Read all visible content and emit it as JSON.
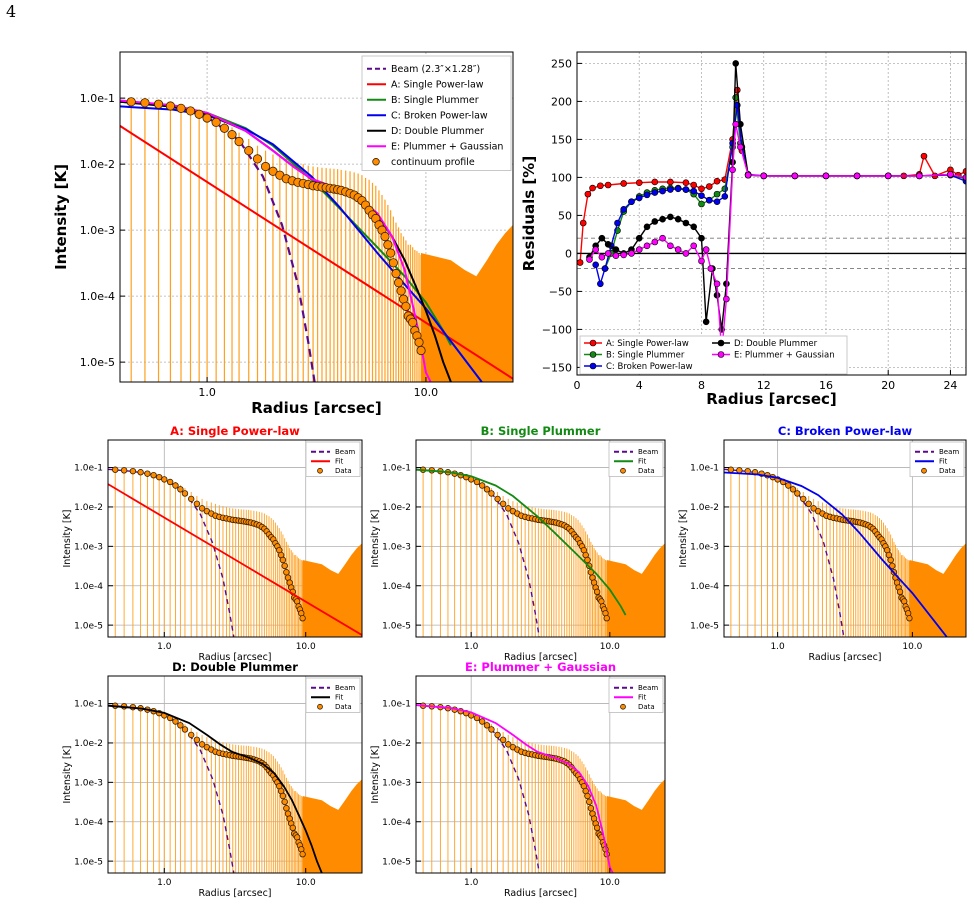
{
  "page_number": "4",
  "colors": {
    "beam": "#5c0a8a",
    "model_a": "#ff0000",
    "model_b": "#138a13",
    "model_c": "#0000ee",
    "model_d": "#000000",
    "model_e": "#ff00ff",
    "data_face": "#ff8c00",
    "errorbar": "#ffa020",
    "grid": "#b0b0b0"
  },
  "chart_data": [
    {
      "id": "profile-main",
      "type": "line",
      "xscale": "log",
      "yscale": "log",
      "xlabel": "Radius [arcsec]",
      "ylabel": "Intensity [K]",
      "xlim": [
        0.4,
        25
      ],
      "ylim": [
        5e-06,
        0.5
      ],
      "xticks": [
        {
          "v": 1,
          "label": "1.0"
        },
        {
          "v": 10,
          "label": "10.0"
        }
      ],
      "yticks": [
        {
          "v": 0.1,
          "label": "1.0e-1"
        },
        {
          "v": 0.01,
          "label": "1.0e-2"
        },
        {
          "v": 0.001,
          "label": "1.0e-3"
        },
        {
          "v": 0.0001,
          "label": "1.0e-4"
        },
        {
          "v": 1e-05,
          "label": "1.0e-5"
        }
      ],
      "grid": true,
      "legend_position": "top-right",
      "legend": [
        {
          "key": "beam",
          "label": "Beam (2.3″×1.28″)"
        },
        {
          "key": "model_a",
          "label": "A: Single Power-law"
        },
        {
          "key": "model_b",
          "label": "B: Single Plummer"
        },
        {
          "key": "model_c",
          "label": "C: Broken Power-law"
        },
        {
          "key": "model_d",
          "label": "D: Double Plummer"
        },
        {
          "key": "model_e",
          "label": "E: Plummer + Gaussian"
        },
        {
          "key": "data",
          "label": "continuum profile"
        }
      ],
      "series": [
        {
          "key": "beam",
          "style": "dashed",
          "x": [
            0.4,
            0.6,
            0.8,
            1.0,
            1.4,
            1.8,
            2.2,
            2.6,
            2.9,
            3.1
          ],
          "y": [
            0.09,
            0.08,
            0.067,
            0.052,
            0.023,
            0.0065,
            0.0012,
            0.00015,
            2e-05,
            5e-06
          ]
        },
        {
          "key": "model_a",
          "x": [
            0.4,
            25
          ],
          "y": [
            0.038,
            5.6e-06
          ]
        },
        {
          "key": "model_b",
          "x": [
            0.4,
            0.7,
            1.0,
            1.5,
            2.0,
            3.0,
            4.0,
            6.0,
            8.0,
            10.0,
            12.0,
            13.0
          ],
          "y": [
            0.088,
            0.076,
            0.06,
            0.035,
            0.019,
            0.0058,
            0.0022,
            0.00055,
            0.0002,
            8e-05,
            3e-05,
            1.8e-05
          ]
        },
        {
          "key": "model_c",
          "x": [
            0.4,
            0.7,
            1.0,
            1.5,
            2.0,
            3.0,
            4.0,
            6.0,
            8.0,
            10.0,
            14.0,
            18.0
          ],
          "y": [
            0.075,
            0.067,
            0.055,
            0.034,
            0.02,
            0.0065,
            0.0023,
            0.00045,
            0.00015,
            6.5e-05,
            1.5e-05,
            5e-06
          ]
        },
        {
          "key": "model_d",
          "x": [
            0.4,
            0.7,
            1.0,
            1.5,
            2.0,
            2.5,
            3.0,
            4.0,
            5.0,
            6.0,
            7.0,
            8.0,
            9.0,
            10.0,
            11.0,
            12.0,
            13.0
          ],
          "y": [
            0.088,
            0.074,
            0.058,
            0.032,
            0.016,
            0.009,
            0.006,
            0.0042,
            0.0029,
            0.0017,
            0.0008,
            0.00035,
            0.00014,
            6e-05,
            2.5e-05,
            1e-05,
            5e-06
          ]
        },
        {
          "key": "model_e",
          "x": [
            0.4,
            0.7,
            1.0,
            1.5,
            2.0,
            2.5,
            3.0,
            4.0,
            5.0,
            6.0,
            7.0,
            8.0,
            9.0,
            9.5,
            10.0,
            10.5
          ],
          "y": [
            0.092,
            0.078,
            0.06,
            0.032,
            0.016,
            0.009,
            0.006,
            0.0042,
            0.003,
            0.0018,
            0.0008,
            0.00025,
            4.5e-05,
            1.8e-05,
            7e-06,
            5e-06
          ]
        }
      ],
      "data_points": {
        "x": [
          0.45,
          0.52,
          0.6,
          0.68,
          0.76,
          0.84,
          0.92,
          1.0,
          1.1,
          1.2,
          1.3,
          1.4,
          1.55,
          1.7,
          1.85,
          2.0,
          2.15,
          2.3,
          2.45,
          2.6,
          2.75,
          2.9,
          3.05,
          3.2,
          3.35,
          3.5,
          3.65,
          3.8,
          3.95,
          4.1,
          4.3,
          4.5,
          4.7,
          4.9,
          5.1,
          5.3,
          5.5,
          5.7,
          5.9,
          6.1,
          6.3,
          6.5,
          6.7,
          6.9,
          7.1,
          7.3,
          7.5,
          7.7,
          7.9,
          8.1,
          8.3,
          8.5,
          8.7,
          8.9,
          9.1,
          9.3,
          9.5
        ],
        "y": [
          0.088,
          0.085,
          0.081,
          0.076,
          0.07,
          0.064,
          0.057,
          0.05,
          0.043,
          0.035,
          0.028,
          0.022,
          0.016,
          0.012,
          0.0092,
          0.0078,
          0.0068,
          0.006,
          0.0056,
          0.0053,
          0.0051,
          0.0049,
          0.0047,
          0.0046,
          0.0045,
          0.0044,
          0.0043,
          0.0042,
          0.0041,
          0.004,
          0.0038,
          0.0036,
          0.0034,
          0.0031,
          0.0028,
          0.0024,
          0.002,
          0.0017,
          0.0015,
          0.0012,
          0.001,
          0.0008,
          0.0006,
          0.00045,
          0.00032,
          0.00022,
          0.00016,
          0.00012,
          9e-05,
          7e-05,
          5e-05,
          4.5e-05,
          4e-05,
          3e-05,
          2.5e-05,
          2e-05,
          1.5e-05
        ],
        "err_y": [
          0.098,
          0.094,
          0.09,
          0.085,
          0.079,
          0.073,
          0.066,
          0.058,
          0.051,
          0.043,
          0.036,
          0.03,
          0.024,
          0.019,
          0.016,
          0.014,
          0.013,
          0.012,
          0.011,
          0.0105,
          0.01,
          0.0095,
          0.0092,
          0.009,
          0.0088,
          0.0087,
          0.0086,
          0.0085,
          0.0084,
          0.0082,
          0.008,
          0.0078,
          0.0075,
          0.0072,
          0.0068,
          0.0062,
          0.0058,
          0.0052,
          0.0047,
          0.004,
          0.0034,
          0.0029,
          0.0024,
          0.002,
          0.0016,
          0.0013,
          0.0011,
          0.0009,
          0.0008,
          0.0007,
          0.0006,
          0.0006,
          0.00055,
          0.0005,
          0.00048,
          0.00045,
          0.00042
        ]
      },
      "noise_floor": {
        "x": [
          9.5,
          11,
          13,
          15,
          17,
          19,
          21,
          23,
          25
        ],
        "y": [
          0.00045,
          0.0004,
          0.00035,
          0.00025,
          0.0002,
          0.00035,
          0.0006,
          0.0009,
          0.0012
        ]
      }
    },
    {
      "id": "residuals",
      "type": "line",
      "xscale": "linear",
      "yscale": "linear",
      "xlabel": "Radius [arcsec]",
      "ylabel": "Residuals [%]",
      "xlim": [
        0,
        25
      ],
      "ylim": [
        -160,
        265
      ],
      "xticks": [
        {
          "v": 0,
          "label": "0"
        },
        {
          "v": 4,
          "label": "4"
        },
        {
          "v": 8,
          "label": "8"
        },
        {
          "v": 12,
          "label": "12"
        },
        {
          "v": 16,
          "label": "16"
        },
        {
          "v": 20,
          "label": "20"
        },
        {
          "v": 24,
          "label": "24"
        }
      ],
      "yticks": [
        {
          "v": 250,
          "label": "250"
        },
        {
          "v": 200,
          "label": "200"
        },
        {
          "v": 150,
          "label": "150"
        },
        {
          "v": 100,
          "label": "100"
        },
        {
          "v": 50,
          "label": "50"
        },
        {
          "v": 0,
          "label": "0"
        },
        {
          "v": -50,
          "label": "−50"
        },
        {
          "v": -100,
          "label": "−100"
        },
        {
          "v": -150,
          "label": "−150"
        }
      ],
      "hlines": [
        {
          "v": 0,
          "style": "solid"
        },
        {
          "v": 20,
          "style": "dashed"
        },
        {
          "v": -20,
          "style": "dashed"
        }
      ],
      "grid": true,
      "legend_position": "lower-left",
      "legend": [
        {
          "key": "model_a",
          "label": "A: Single Power-law"
        },
        {
          "key": "model_d",
          "label": "D: Double Plummer"
        },
        {
          "key": "model_b",
          "label": "B: Single Plummer"
        },
        {
          "key": "model_e",
          "label": "E: Plummer + Gaussian"
        },
        {
          "key": "model_c",
          "label": "C: Broken Power-law"
        }
      ],
      "series": [
        {
          "key": "model_a",
          "x": [
            0.2,
            0.4,
            0.7,
            1.0,
            1.5,
            2,
            3,
            4,
            5,
            6,
            7,
            7.5,
            8,
            8.5,
            9,
            9.5,
            10,
            10.3,
            10.6,
            11,
            12,
            14,
            16,
            18,
            20,
            21,
            22,
            22.3,
            23,
            24,
            24.5,
            25
          ],
          "y": [
            -12,
            40,
            78,
            86,
            89,
            90,
            92,
            93,
            94,
            94,
            93,
            90,
            85,
            88,
            95,
            97,
            150,
            215,
            135,
            103,
            102,
            102,
            102,
            102,
            102,
            102,
            104,
            128,
            102,
            110,
            103,
            108
          ]
        },
        {
          "key": "model_b",
          "x": [
            1.8,
            2.2,
            2.6,
            3,
            3.5,
            4,
            4.5,
            5,
            5.5,
            6,
            6.5,
            7,
            7.5,
            8,
            8.5,
            9,
            9.5,
            10,
            10.2,
            10.5,
            11,
            12,
            14,
            16,
            18,
            20,
            22,
            24,
            25
          ],
          "y": [
            -20,
            0,
            30,
            55,
            68,
            75,
            80,
            83,
            85,
            86,
            86,
            84,
            78,
            65,
            70,
            78,
            85,
            140,
            205,
            145,
            103,
            102,
            102,
            102,
            102,
            102,
            102,
            104,
            98
          ]
        },
        {
          "key": "model_c",
          "x": [
            1.2,
            1.5,
            1.8,
            2.2,
            2.6,
            3,
            3.5,
            4,
            4.5,
            5,
            5.5,
            6,
            6.5,
            7,
            7.5,
            8,
            8.5,
            9,
            9.5,
            10,
            10.3,
            10.6,
            11,
            12,
            14,
            16,
            18,
            20,
            22,
            24,
            25
          ],
          "y": [
            -15,
            -40,
            -20,
            10,
            40,
            58,
            68,
            73,
            77,
            80,
            82,
            84,
            85,
            84,
            82,
            76,
            70,
            68,
            75,
            145,
            195,
            140,
            104,
            102,
            102,
            102,
            102,
            102,
            102,
            103,
            95
          ]
        },
        {
          "key": "model_d",
          "x": [
            0.8,
            1.2,
            1.6,
            2,
            2.5,
            3,
            3.5,
            4,
            4.5,
            5,
            5.5,
            6,
            6.5,
            7,
            7.5,
            8,
            8.3,
            8.7,
            9,
            9.3,
            9.6,
            10,
            10.2,
            10.5,
            11,
            12,
            14,
            16,
            18,
            20,
            22,
            24,
            25
          ],
          "y": [
            -5,
            10,
            20,
            12,
            5,
            0,
            5,
            20,
            35,
            42,
            45,
            48,
            45,
            40,
            35,
            20,
            -90,
            -20,
            -55,
            -100,
            -40,
            120,
            250,
            170,
            103,
            102,
            102,
            102,
            102,
            102,
            102,
            104,
            100
          ]
        },
        {
          "key": "model_e",
          "x": [
            0.8,
            1.2,
            1.6,
            2,
            2.5,
            3,
            3.5,
            4,
            4.5,
            5,
            5.5,
            6,
            6.5,
            7,
            7.5,
            8,
            8.3,
            8.6,
            9,
            9.3,
            9.6,
            10,
            10.2,
            10.5,
            11,
            12,
            14,
            16,
            18,
            20,
            22,
            24,
            25
          ],
          "y": [
            -8,
            5,
            -5,
            0,
            -3,
            -2,
            0,
            5,
            10,
            15,
            20,
            10,
            5,
            0,
            10,
            -10,
            5,
            -20,
            -40,
            -130,
            -60,
            110,
            170,
            140,
            103,
            102,
            102,
            102,
            102,
            102,
            102,
            104,
            100
          ]
        }
      ]
    },
    {
      "id": "fit-a",
      "type": "line",
      "title": "A: Single Power-law",
      "title_key": "model_a",
      "fit_key": "model_a",
      "xlabel": "Radius [arcsec]",
      "ylabel": "Intensity [K]",
      "legend": [
        {
          "key": "beam",
          "label": "Beam"
        },
        {
          "key": "fit",
          "label": "Fit"
        },
        {
          "key": "data",
          "label": "Data"
        }
      ]
    },
    {
      "id": "fit-b",
      "type": "line",
      "title": "B: Single Plummer",
      "title_key": "model_b",
      "fit_key": "model_b",
      "xlabel": "Radius [arcsec]",
      "ylabel": "Intensity [K]",
      "legend": [
        {
          "key": "beam",
          "label": "Beam"
        },
        {
          "key": "fit",
          "label": "Fit"
        },
        {
          "key": "data",
          "label": "Data"
        }
      ]
    },
    {
      "id": "fit-c",
      "type": "line",
      "title": "C: Broken Power-law",
      "title_key": "model_c",
      "fit_key": "model_c",
      "xlabel": "Radius [arcsec]",
      "ylabel": "Intensity [K]",
      "legend": [
        {
          "key": "beam",
          "label": "Beam"
        },
        {
          "key": "fit",
          "label": "Fit"
        },
        {
          "key": "data",
          "label": "Data"
        }
      ]
    },
    {
      "id": "fit-d",
      "type": "line",
      "title": "D: Double Plummer",
      "title_key": "model_d",
      "fit_key": "model_d",
      "xlabel": "Radius [arcsec]",
      "ylabel": "Intensity [K]",
      "legend": [
        {
          "key": "beam",
          "label": "Beam"
        },
        {
          "key": "fit",
          "label": "Fit"
        },
        {
          "key": "data",
          "label": "Data"
        }
      ]
    },
    {
      "id": "fit-e",
      "type": "line",
      "title": "E: Plummer + Gaussian",
      "title_key": "model_e",
      "fit_key": "model_e",
      "xlabel": "Radius [arcsec]",
      "ylabel": "Intensity [K]",
      "legend": [
        {
          "key": "beam",
          "label": "Beam"
        },
        {
          "key": "fit",
          "label": "Fit"
        },
        {
          "key": "data",
          "label": "Data"
        }
      ]
    }
  ]
}
